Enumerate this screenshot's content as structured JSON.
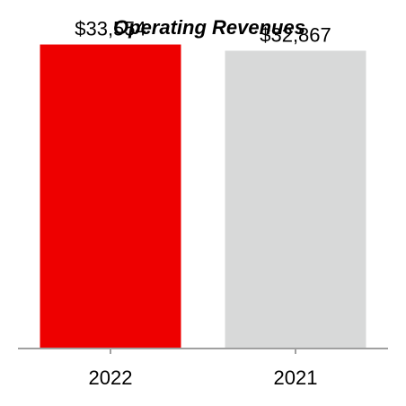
{
  "chart_data": {
    "type": "bar",
    "title": "Operating Revenues",
    "xlabel": "",
    "ylabel": "",
    "categories": [
      "2022",
      "2021"
    ],
    "values": [
      33554,
      32867
    ],
    "data_labels": [
      "$33,554",
      "$32,867"
    ],
    "colors": [
      "#ee0000",
      "#d8d9d9"
    ],
    "axis_color": "#a0a0a0",
    "ylim": [
      0,
      34500
    ],
    "grid": false,
    "legend": "none"
  }
}
